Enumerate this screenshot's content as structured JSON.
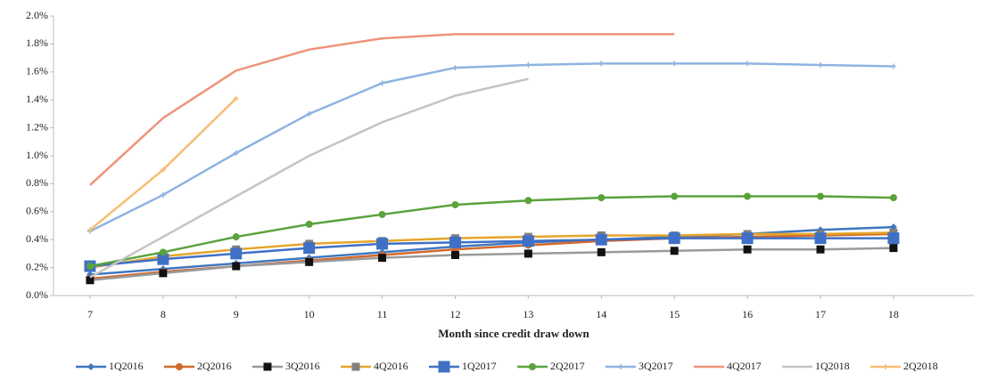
{
  "chart_data": {
    "type": "line",
    "xlabel": "Month since credit draw down",
    "x": [
      7,
      8,
      9,
      10,
      11,
      12,
      13,
      14,
      15,
      16,
      17,
      18
    ],
    "xlim": [
      6.5,
      19.1
    ],
    "xticks": [
      7,
      8,
      9,
      10,
      11,
      12,
      13,
      14,
      15,
      16,
      17,
      18
    ],
    "ylim": [
      0,
      2.0
    ],
    "yticks": [
      {
        "value": 0,
        "label": "0.0%"
      },
      {
        "value": 0.2,
        "label": "0.2%"
      },
      {
        "value": 0.4,
        "label": "0.4%"
      },
      {
        "value": 0.6,
        "label": "0.6%"
      },
      {
        "value": 0.8,
        "label": "0.8%"
      },
      {
        "value": 1.0,
        "label": "1.0%"
      },
      {
        "value": 1.2,
        "label": "1.2%"
      },
      {
        "value": 1.4,
        "label": "1.4%"
      },
      {
        "value": 1.6,
        "label": "1.6%"
      },
      {
        "value": 1.8,
        "label": "1.8%"
      },
      {
        "value": 2.0,
        "label": "2.0%"
      }
    ],
    "grid": false,
    "legend": "bottom",
    "series": [
      {
        "name": "1Q2016",
        "color": "#3f78c0",
        "marker": "diamond",
        "marker_color": "#3f78c0",
        "values": [
          0.15,
          0.19,
          0.23,
          0.27,
          0.31,
          0.35,
          0.38,
          0.4,
          0.42,
          0.44,
          0.47,
          0.49
        ]
      },
      {
        "name": "2Q2016",
        "color": "#d2692b",
        "marker": "circle",
        "marker_color": "#d2692b",
        "values": [
          0.12,
          0.17,
          0.21,
          0.25,
          0.29,
          0.33,
          0.36,
          0.39,
          0.41,
          0.42,
          0.43,
          0.44
        ]
      },
      {
        "name": "3Q2016",
        "color": "#9a9a9a",
        "marker": "square",
        "marker_color": "#111111",
        "values": [
          0.11,
          0.16,
          0.21,
          0.24,
          0.27,
          0.29,
          0.3,
          0.31,
          0.32,
          0.33,
          0.33,
          0.34
        ]
      },
      {
        "name": "4Q2016",
        "color": "#e5a52a",
        "marker": "square",
        "marker_color": "#808080",
        "values": [
          0.2,
          0.28,
          0.33,
          0.37,
          0.39,
          0.41,
          0.42,
          0.43,
          0.43,
          0.44,
          0.44,
          0.45
        ]
      },
      {
        "name": "1Q2017",
        "color": "#3f70c6",
        "marker": "big-square",
        "marker_color": "#3f70c6",
        "values": [
          0.21,
          0.26,
          0.3,
          0.34,
          0.37,
          0.38,
          0.39,
          0.4,
          0.41,
          0.41,
          0.41,
          0.41
        ]
      },
      {
        "name": "2Q2017",
        "color": "#5aa23c",
        "marker": "circle",
        "marker_color": "#5aa23c",
        "values": [
          0.21,
          0.31,
          0.42,
          0.51,
          0.58,
          0.65,
          0.68,
          0.7,
          0.71,
          0.71,
          0.71,
          0.7
        ]
      },
      {
        "name": "3Q2017",
        "color": "#8eb4e0",
        "marker": "plus",
        "marker_color": "#8eb4e0",
        "values": [
          0.46,
          0.72,
          1.02,
          1.3,
          1.52,
          1.63,
          1.65,
          1.66,
          1.66,
          1.66,
          1.65,
          1.64
        ]
      },
      {
        "name": "4Q2017",
        "color": "#ee9379",
        "marker": "none",
        "marker_color": "#ee9379",
        "values": [
          0.79,
          1.27,
          1.61,
          1.76,
          1.84,
          1.87,
          1.87,
          1.87,
          1.87,
          null,
          null,
          null
        ]
      },
      {
        "name": "1Q2018",
        "color": "#c4c4c4",
        "marker": "none",
        "marker_color": "#c4c4c4",
        "values": [
          0.13,
          0.42,
          0.71,
          1.0,
          1.24,
          1.43,
          1.55,
          null,
          null,
          null,
          null,
          null
        ]
      },
      {
        "name": "2Q2018",
        "color": "#f7bd73",
        "marker": "plus",
        "marker_color": "#f7bd73",
        "values": [
          0.47,
          0.9,
          1.41,
          null,
          null,
          null,
          null,
          null,
          null,
          null,
          null,
          null
        ]
      }
    ]
  }
}
